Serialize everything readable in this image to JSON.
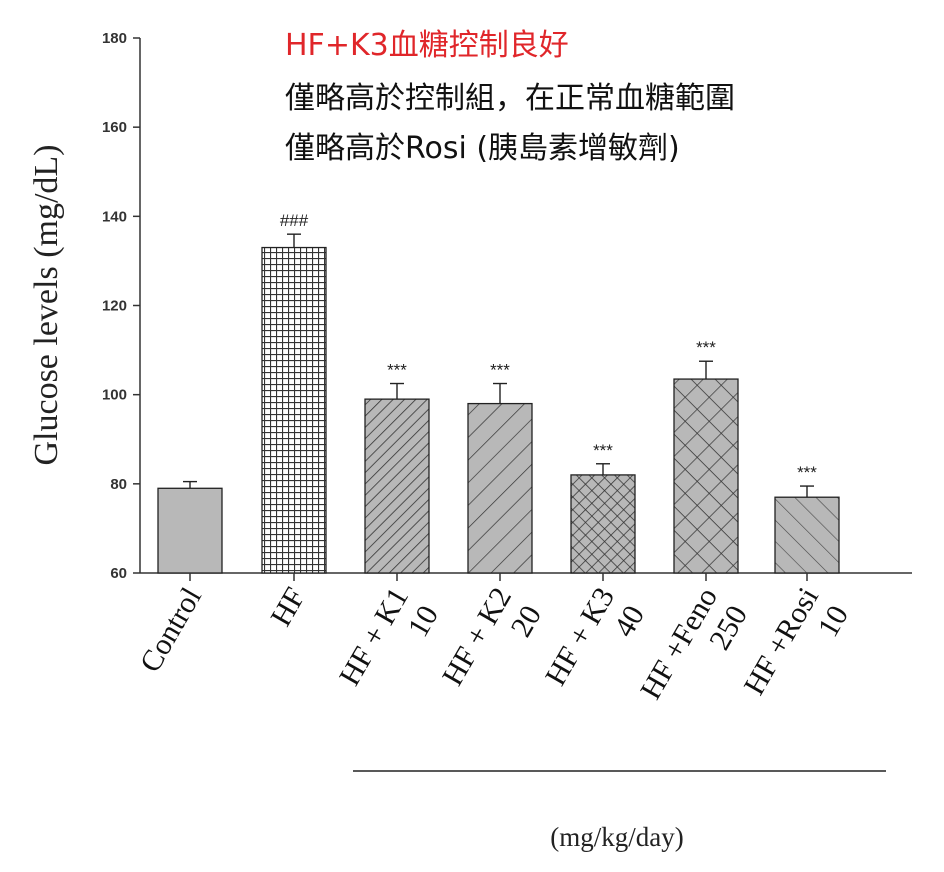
{
  "chart_data": {
    "type": "bar",
    "ylabel": "Glucose levels (mg/dL)",
    "ylim": [
      60,
      180
    ],
    "yticks": [
      60,
      80,
      100,
      120,
      140,
      160,
      180
    ],
    "grid": false,
    "categories": [
      {
        "line1": "Control",
        "line2": ""
      },
      {
        "line1": "HF",
        "line2": ""
      },
      {
        "line1": "HF + K1",
        "line2": "10"
      },
      {
        "line1": "HF + K2",
        "line2": "20"
      },
      {
        "line1": "HF + K3",
        "line2": "40"
      },
      {
        "line1": "HF +Feno",
        "line2": "250"
      },
      {
        "line1": "HF +Rosi",
        "line2": "10"
      }
    ],
    "values": [
      79,
      133,
      99,
      98,
      82,
      103.5,
      77
    ],
    "errors": [
      1.5,
      3,
      3.5,
      4.5,
      2.5,
      4,
      2.5
    ],
    "significance": [
      "",
      "###",
      "***",
      "***",
      "***",
      "***",
      "***"
    ],
    "patterns": [
      "solid",
      "grid",
      "diag-fine",
      "diag-wide",
      "crosshatch-fine",
      "crosshatch-wide",
      "diag-wide-light"
    ],
    "bar_color": "#b8b8b8",
    "unit_label": "(mg/kg/day)",
    "annotations": [
      {
        "text": "HF+K3血糖控制良好",
        "color": "#e0262a"
      },
      {
        "text": "僅略高於控制組，在正常血糖範圍",
        "color": "#111111"
      },
      {
        "text": "僅略高於Rosi (胰島素增敏劑)",
        "color": "#111111"
      }
    ]
  }
}
